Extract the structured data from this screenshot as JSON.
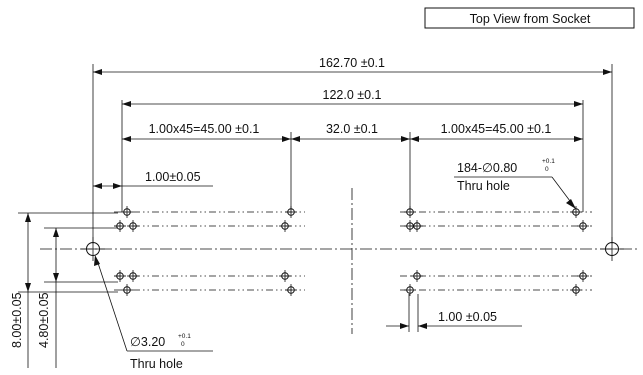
{
  "view_label": "Top View from Socket",
  "dimensions": {
    "overall": "162.70 ±0.1",
    "span": "122.0 ±0.1",
    "left_pitch": "1.00x45=45.00 ±0.1",
    "middle_gap": "32.0 ±0.1",
    "right_pitch": "1.00x45=45.00 ±0.1",
    "pin_offset_top": "1.00±0.05",
    "pin_offset_bottom": "1.00 ±0.05",
    "height_outer": "8.00±0.05",
    "height_inner": "4.80±0.05"
  },
  "callouts": {
    "pin_hole_main": "184-∅0.80",
    "pin_hole_tol_upper": "+0.1",
    "pin_hole_tol_lower": "0",
    "pin_hole_note": "Thru hole",
    "mount_hole_main": "∅3.20",
    "mount_hole_tol_upper": "+0.1",
    "mount_hole_tol_lower": "0",
    "mount_hole_note": "Thru hole"
  }
}
